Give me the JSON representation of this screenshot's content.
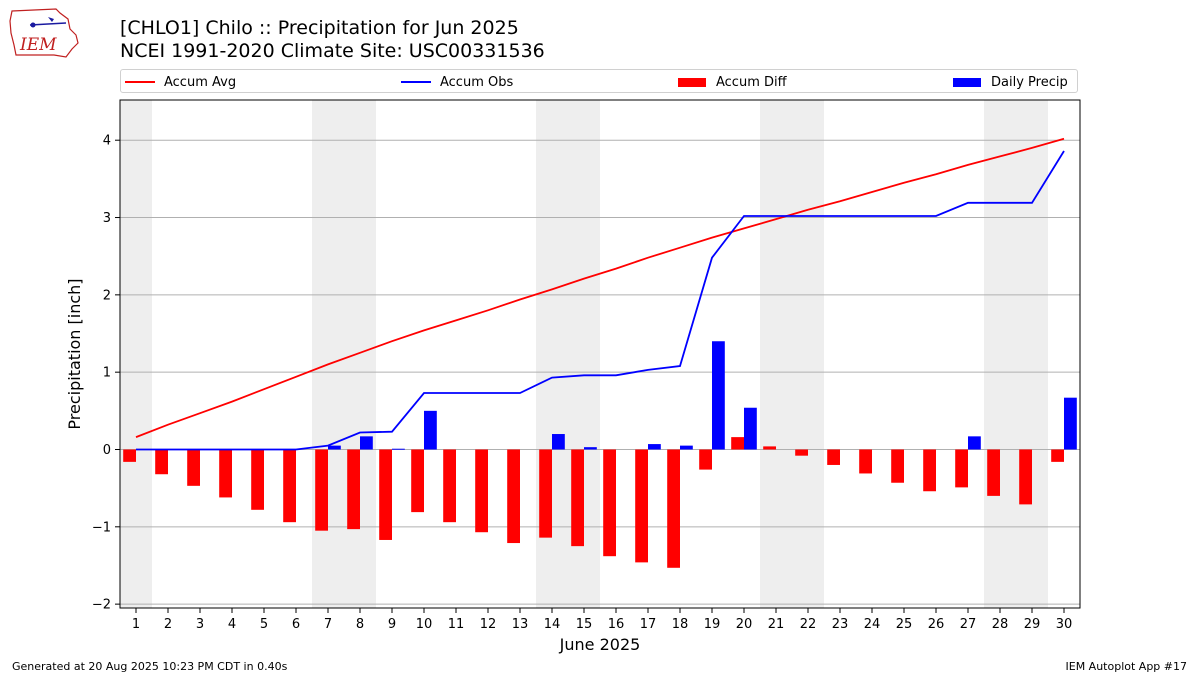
{
  "header": {
    "title_line1": "[CHLO1] Chilo :: Precipitation for Jun 2025",
    "title_line2": "NCEI 1991-2020 Climate Site: USC00331536",
    "logo_text": "IEM"
  },
  "footer": {
    "left": "Generated at 20 Aug 2025 10:23 PM CDT in 0.40s",
    "right": "IEM Autoplot App #17"
  },
  "chart_data": {
    "type": "bar",
    "xlabel": "June 2025",
    "ylabel": "Precipitation [inch]",
    "ylim": [
      -2.05,
      4.52
    ],
    "yticks": [
      -2,
      -1,
      0,
      1,
      2,
      3,
      4
    ],
    "ytick_labels": [
      "−2",
      "−1",
      "0",
      "1",
      "2",
      "3",
      "4"
    ],
    "grid": "horizontal",
    "legend_placement": "top",
    "x": [
      1,
      2,
      3,
      4,
      5,
      6,
      7,
      8,
      9,
      10,
      11,
      12,
      13,
      14,
      15,
      16,
      17,
      18,
      19,
      20,
      21,
      22,
      23,
      24,
      25,
      26,
      27,
      28,
      29,
      30
    ],
    "weekend_shading": [
      [
        1,
        1
      ],
      [
        7,
        8
      ],
      [
        14,
        15
      ],
      [
        21,
        22
      ],
      [
        28,
        29
      ]
    ],
    "series": [
      {
        "name": "Accum Avg",
        "kind": "line",
        "color": "#ff0000",
        "values": [
          0.16,
          0.32,
          0.47,
          0.62,
          0.78,
          0.94,
          1.1,
          1.25,
          1.4,
          1.54,
          1.67,
          1.8,
          1.94,
          2.07,
          2.21,
          2.34,
          2.48,
          2.61,
          2.74,
          2.86,
          2.98,
          3.1,
          3.21,
          3.33,
          3.45,
          3.56,
          3.68,
          3.79,
          3.9,
          4.02
        ]
      },
      {
        "name": "Accum Obs",
        "kind": "line",
        "color": "#0000ff",
        "values": [
          0.0,
          0.0,
          0.0,
          0.0,
          0.0,
          0.0,
          0.05,
          0.22,
          0.23,
          0.73,
          0.73,
          0.73,
          0.73,
          0.93,
          0.96,
          0.96,
          1.03,
          1.08,
          2.48,
          3.02,
          3.02,
          3.02,
          3.02,
          3.02,
          3.02,
          3.02,
          3.19,
          3.19,
          3.19,
          3.86
        ]
      },
      {
        "name": "Accum Diff",
        "kind": "bar",
        "color": "#ff0000",
        "values": [
          -0.16,
          -0.32,
          -0.47,
          -0.62,
          -0.78,
          -0.94,
          -1.05,
          -1.03,
          -1.17,
          -0.81,
          -0.94,
          -1.07,
          -1.21,
          -1.14,
          -1.25,
          -1.38,
          -1.46,
          -1.53,
          -0.26,
          0.16,
          0.04,
          -0.08,
          -0.2,
          -0.31,
          -0.43,
          -0.54,
          -0.49,
          -0.6,
          -0.71,
          -0.16
        ]
      },
      {
        "name": "Daily Precip",
        "kind": "bar",
        "color": "#0000ff",
        "values": [
          0,
          0,
          0,
          0,
          0,
          0,
          0.05,
          0.17,
          0.01,
          0.5,
          0,
          0,
          0,
          0.2,
          0.03,
          0,
          0.07,
          0.05,
          1.4,
          0.54,
          0,
          0,
          0,
          0,
          0,
          0,
          0.17,
          0,
          0,
          0.67
        ]
      }
    ]
  }
}
